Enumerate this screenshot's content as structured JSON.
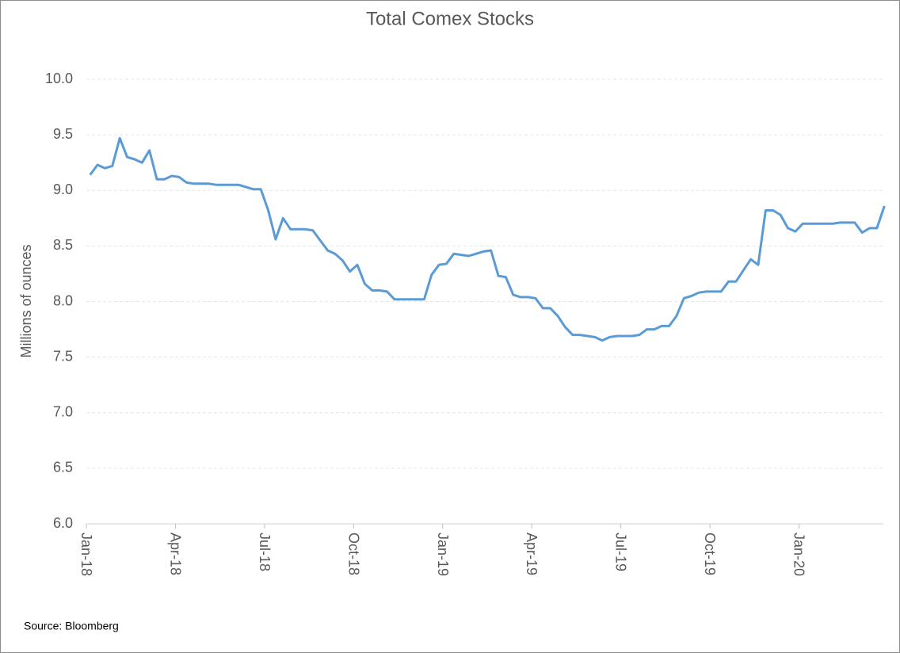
{
  "chart_data": {
    "type": "line",
    "title": "Total Comex Stocks",
    "y_label": "Millions of ounces",
    "source": "Source: Bloomberg",
    "x": [
      "2018-01",
      "2018-01",
      "2018-01",
      "2018-01",
      "2018-02",
      "2018-02",
      "2018-02",
      "2018-02",
      "2018-03",
      "2018-03",
      "2018-03",
      "2018-03",
      "2018-04",
      "2018-04",
      "2018-04",
      "2018-04",
      "2018-05",
      "2018-05",
      "2018-05",
      "2018-05",
      "2018-06",
      "2018-06",
      "2018-06",
      "2018-06",
      "2018-07",
      "2018-07",
      "2018-07",
      "2018-07",
      "2018-08",
      "2018-08",
      "2018-08",
      "2018-08",
      "2018-09",
      "2018-09",
      "2018-09",
      "2018-09",
      "2018-10",
      "2018-10",
      "2018-10",
      "2018-10",
      "2018-11",
      "2018-11",
      "2018-11",
      "2018-11",
      "2018-12",
      "2018-12",
      "2018-12",
      "2018-12",
      "2019-01",
      "2019-01",
      "2019-01",
      "2019-01",
      "2019-02",
      "2019-02",
      "2019-02",
      "2019-02",
      "2019-03",
      "2019-03",
      "2019-03",
      "2019-03",
      "2019-04",
      "2019-04",
      "2019-04",
      "2019-04",
      "2019-05",
      "2019-05",
      "2019-05",
      "2019-05",
      "2019-06",
      "2019-06",
      "2019-06",
      "2019-06",
      "2019-07",
      "2019-07",
      "2019-07",
      "2019-07",
      "2019-08",
      "2019-08",
      "2019-08",
      "2019-08",
      "2019-09",
      "2019-09",
      "2019-09",
      "2019-09",
      "2019-10",
      "2019-10",
      "2019-10",
      "2019-10",
      "2019-11",
      "2019-11",
      "2019-11",
      "2019-11",
      "2019-12",
      "2019-12",
      "2019-12",
      "2019-12",
      "2020-01",
      "2020-01",
      "2020-01",
      "2020-01",
      "2020-02",
      "2020-02",
      "2020-02",
      "2020-02",
      "2020-03",
      "2020-03",
      "2020-03",
      "2020-03"
    ],
    "series": [
      {
        "name": "Total Comex Stocks",
        "color": "#5b9bd5",
        "values": [
          9.14,
          9.23,
          9.2,
          9.22,
          9.47,
          9.3,
          9.28,
          9.25,
          9.36,
          9.1,
          9.1,
          9.13,
          9.12,
          9.07,
          9.06,
          9.06,
          9.06,
          9.05,
          9.05,
          9.05,
          9.05,
          9.03,
          9.01,
          9.01,
          8.82,
          8.56,
          8.75,
          8.65,
          8.65,
          8.65,
          8.64,
          8.55,
          8.46,
          8.43,
          8.37,
          8.27,
          8.33,
          8.16,
          8.1,
          8.1,
          8.09,
          8.02,
          8.02,
          8.02,
          8.02,
          8.02,
          8.24,
          8.33,
          8.34,
          8.43,
          8.42,
          8.41,
          8.43,
          8.45,
          8.46,
          8.23,
          8.22,
          8.06,
          8.04,
          8.04,
          8.03,
          7.94,
          7.94,
          7.87,
          7.77,
          7.7,
          7.7,
          7.69,
          7.68,
          7.65,
          7.68,
          7.69,
          7.69,
          7.69,
          7.7,
          7.75,
          7.75,
          7.78,
          7.78,
          7.87,
          8.03,
          8.05,
          8.08,
          8.09,
          8.09,
          8.09,
          8.18,
          8.18,
          8.28,
          8.38,
          8.33,
          8.82,
          8.82,
          8.78,
          8.66,
          8.63,
          8.7,
          8.7,
          8.7,
          8.7,
          8.7,
          8.71,
          8.71,
          8.71,
          8.62,
          8.66,
          8.66,
          8.86
        ]
      }
    ],
    "ylim": [
      6.0,
      10.0
    ],
    "yticks": [
      {
        "value": 6,
        "label": "6.0"
      },
      6.5,
      {
        "value": 7,
        "label": "7.0"
      },
      7.5,
      {
        "value": 8,
        "label": "8.0"
      },
      8.5,
      {
        "value": 9,
        "label": "9.0"
      },
      9.5,
      {
        "value": 10,
        "label": "10.0"
      }
    ],
    "xticks": [
      {
        "value": "2018-01",
        "label": "Jan-18"
      },
      {
        "value": "2018-04",
        "label": "Apr-18"
      },
      {
        "value": "2018-07",
        "label": "Jul-18"
      },
      {
        "value": "2018-10",
        "label": "Oct-18"
      },
      {
        "value": "2019-01",
        "label": "Jan-19"
      },
      {
        "value": "2019-04",
        "label": "Apr-19"
      },
      {
        "value": "2019-07",
        "label": "Jul-19"
      },
      {
        "value": "2019-10",
        "label": "Oct-19"
      },
      {
        "value": "2020-01",
        "label": "Jan-20"
      }
    ],
    "grid": true
  }
}
